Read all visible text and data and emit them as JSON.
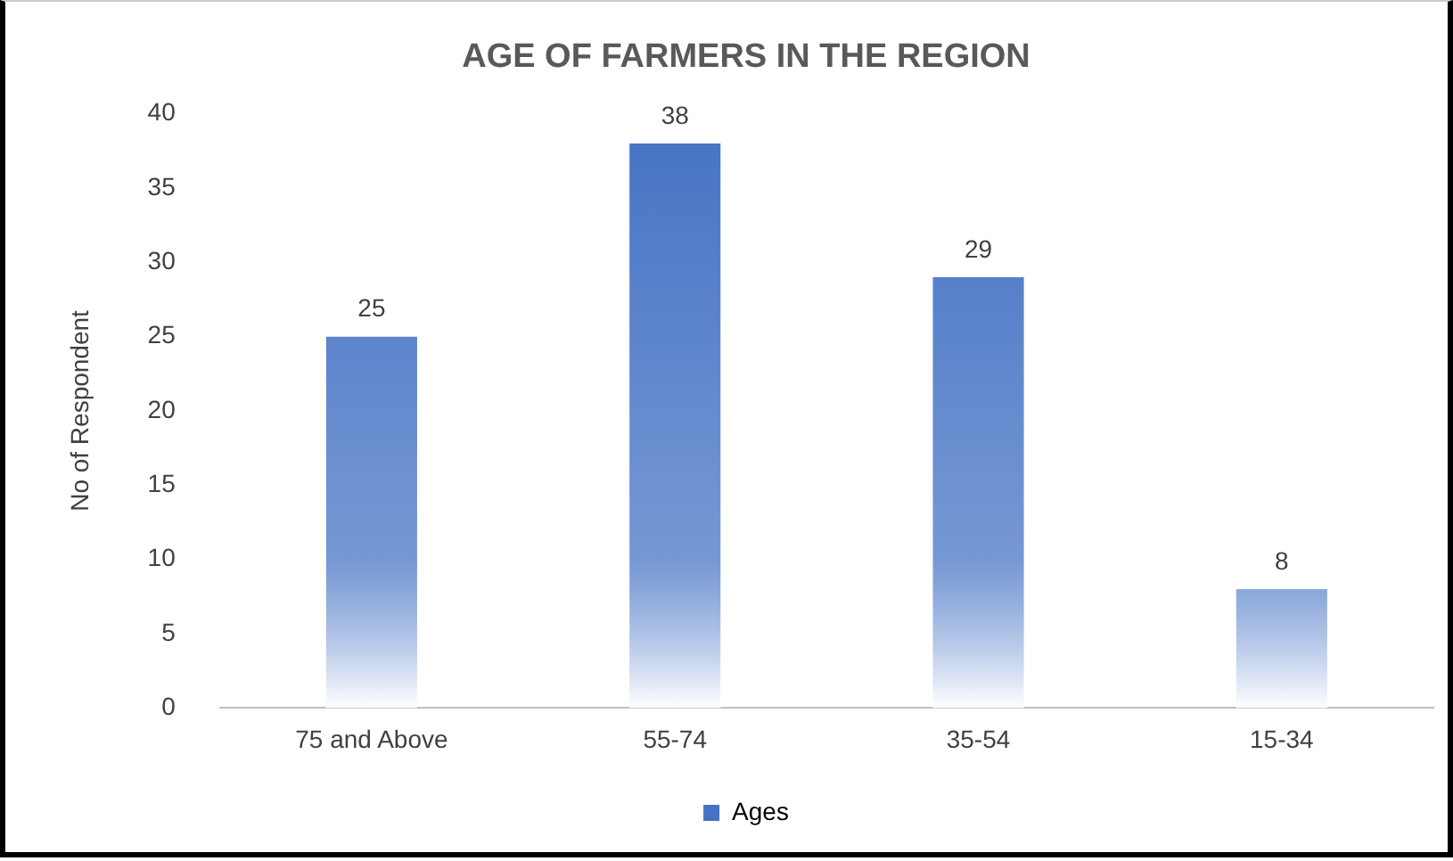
{
  "chart_data": {
    "type": "bar",
    "title": "AGE OF FARMERS IN THE REGION",
    "ylabel": "No of Respondent",
    "categories": [
      "75 and Above",
      "55-74",
      "35-54",
      "15-34"
    ],
    "series": [
      {
        "name": "Ages",
        "color": "#4472c4",
        "values": [
          25,
          38,
          29,
          8
        ]
      }
    ],
    "ylim": [
      0,
      40
    ],
    "yticks": [
      0,
      5,
      10,
      15,
      20,
      25,
      30,
      35,
      40
    ],
    "grid": false,
    "legend": "bottom",
    "data_labels": true
  }
}
